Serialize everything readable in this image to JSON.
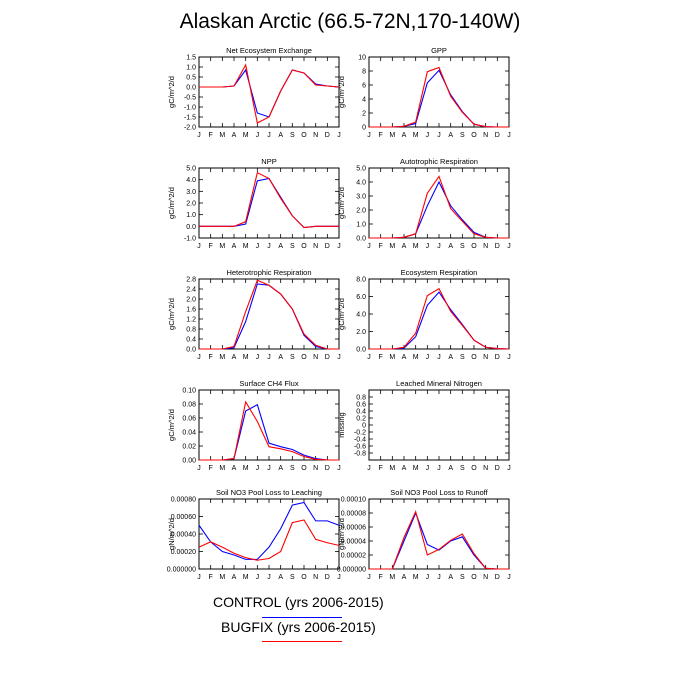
{
  "page": {
    "title": "Alaskan Arctic (66.5-72N,170-140W)"
  },
  "legend": [
    {
      "label": "CONTROL (yrs 2006-2015)",
      "color": "#0000ff"
    },
    {
      "label": "BUGFIX (yrs 2006-2015)",
      "color": "#ff0000"
    }
  ],
  "chart_data": [
    {
      "type": "line",
      "title": "Net Ecosystem Exchange",
      "ylabel": "gC/m^2/d",
      "categories": [
        "J",
        "F",
        "M",
        "A",
        "M",
        "J",
        "J",
        "A",
        "S",
        "O",
        "N",
        "D",
        "J"
      ],
      "ylim": [
        -2.0,
        1.5
      ],
      "yticks": [
        "1.5",
        "1.0",
        "0.5",
        "0.0",
        "-0.5",
        "-1.0",
        "-1.5",
        "-2.0"
      ],
      "series": [
        {
          "color": "#0000ff",
          "values": [
            0.0,
            0.0,
            0.0,
            0.05,
            0.85,
            -1.3,
            -1.5,
            -0.2,
            0.85,
            0.7,
            0.15,
            0.05,
            0.0
          ]
        },
        {
          "color": "#ff0000",
          "values": [
            0.0,
            0.0,
            0.0,
            0.05,
            1.1,
            -1.8,
            -1.5,
            -0.2,
            0.85,
            0.7,
            0.1,
            0.05,
            0.0
          ]
        }
      ]
    },
    {
      "type": "line",
      "title": "GPP",
      "ylabel": "gC/m^2/d",
      "categories": [
        "J",
        "F",
        "M",
        "A",
        "M",
        "J",
        "J",
        "A",
        "S",
        "O",
        "N",
        "D",
        "J"
      ],
      "ylim": [
        0,
        10
      ],
      "yticks": [
        "10",
        "8",
        "6",
        "4",
        "2",
        "0"
      ],
      "series": [
        {
          "color": "#0000ff",
          "values": [
            0,
            0,
            0,
            0.1,
            0.5,
            6.3,
            8.1,
            4.6,
            2.2,
            0.4,
            0.05,
            0,
            0
          ]
        },
        {
          "color": "#ff0000",
          "values": [
            0,
            0,
            0,
            0.1,
            0.7,
            7.9,
            8.5,
            4.4,
            2.1,
            0.4,
            0.05,
            0,
            0
          ]
        }
      ]
    },
    {
      "type": "line",
      "title": "NPP",
      "ylabel": "gC/m^2/d",
      "categories": [
        "J",
        "F",
        "M",
        "A",
        "M",
        "J",
        "J",
        "A",
        "S",
        "O",
        "N",
        "D",
        "J"
      ],
      "ylim": [
        -1.0,
        5.0
      ],
      "yticks": [
        "5.0",
        "4.0",
        "3.0",
        "2.0",
        "1.0",
        "0.0",
        "-1.0"
      ],
      "series": [
        {
          "color": "#0000ff",
          "values": [
            0.0,
            0.0,
            0.0,
            0.0,
            0.2,
            3.9,
            4.1,
            2.5,
            0.9,
            -0.1,
            0.0,
            0.0,
            0.0
          ]
        },
        {
          "color": "#ff0000",
          "values": [
            0.0,
            0.0,
            0.0,
            0.0,
            0.4,
            4.6,
            4.1,
            2.4,
            0.9,
            -0.1,
            0.0,
            0.0,
            0.0
          ]
        }
      ]
    },
    {
      "type": "line",
      "title": "Autotrophic Respiration",
      "ylabel": "gC/m^2/d",
      "categories": [
        "J",
        "F",
        "M",
        "A",
        "M",
        "J",
        "J",
        "A",
        "S",
        "O",
        "N",
        "D",
        "J"
      ],
      "ylim": [
        0.0,
        5.0
      ],
      "yticks": [
        "5.0",
        "4.0",
        "3.0",
        "2.0",
        "1.0",
        "0.0"
      ],
      "series": [
        {
          "color": "#0000ff",
          "values": [
            0,
            0,
            0,
            0.05,
            0.3,
            2.3,
            4.0,
            2.3,
            1.3,
            0.4,
            0.05,
            0,
            0
          ]
        },
        {
          "color": "#ff0000",
          "values": [
            0,
            0,
            0,
            0.05,
            0.3,
            3.2,
            4.4,
            2.1,
            1.2,
            0.3,
            0.05,
            0,
            0
          ]
        }
      ]
    },
    {
      "type": "line",
      "title": "Heterotrophic Respiration",
      "ylabel": "gC/m^2/d",
      "categories": [
        "J",
        "F",
        "M",
        "A",
        "M",
        "J",
        "J",
        "A",
        "S",
        "O",
        "N",
        "D",
        "J"
      ],
      "ylim": [
        0.0,
        2.8
      ],
      "yticks": [
        "2.8",
        "2.4",
        "2.0",
        "1.6",
        "1.2",
        "0.8",
        "0.4",
        "0.0"
      ],
      "series": [
        {
          "color": "#0000ff",
          "values": [
            0.0,
            0.0,
            0.0,
            0.05,
            1.1,
            2.6,
            2.55,
            2.2,
            1.6,
            0.55,
            0.1,
            0.0,
            0.0
          ]
        },
        {
          "color": "#ff0000",
          "values": [
            0.0,
            0.0,
            0.0,
            0.1,
            1.5,
            2.75,
            2.55,
            2.2,
            1.6,
            0.6,
            0.15,
            0.0,
            0.0
          ]
        }
      ]
    },
    {
      "type": "line",
      "title": "Ecosystem Respiration",
      "ylabel": "gC/m^2/d",
      "categories": [
        "J",
        "F",
        "M",
        "A",
        "M",
        "J",
        "J",
        "A",
        "S",
        "O",
        "N",
        "D",
        "J"
      ],
      "ylim": [
        0.0,
        8.0
      ],
      "yticks": [
        "8.0",
        "6.0",
        "4.0",
        "2.0",
        "0.0"
      ],
      "series": [
        {
          "color": "#0000ff",
          "values": [
            0,
            0,
            0,
            0.1,
            1.4,
            5.0,
            6.5,
            4.5,
            2.8,
            1.0,
            0.2,
            0.05,
            0
          ]
        },
        {
          "color": "#ff0000",
          "values": [
            0,
            0,
            0,
            0.2,
            1.8,
            6.1,
            6.9,
            4.3,
            2.7,
            1.0,
            0.2,
            0.05,
            0
          ]
        }
      ]
    },
    {
      "type": "line",
      "title": "Surface CH4 Flux",
      "ylabel": "gC/m^2/d",
      "categories": [
        "J",
        "F",
        "M",
        "A",
        "M",
        "J",
        "J",
        "A",
        "S",
        "O",
        "N",
        "D",
        "J"
      ],
      "ylim": [
        0.0,
        0.1
      ],
      "yticks": [
        "0.10",
        "0.08",
        "0.06",
        "0.04",
        "0.02",
        "0.00"
      ],
      "series": [
        {
          "color": "#0000ff",
          "values": [
            0,
            0,
            0,
            0.002,
            0.07,
            0.079,
            0.024,
            0.019,
            0.015,
            0.007,
            0.002,
            0,
            0
          ]
        },
        {
          "color": "#ff0000",
          "values": [
            0,
            0,
            0,
            0.002,
            0.083,
            0.055,
            0.019,
            0.016,
            0.012,
            0.005,
            0.001,
            0,
            0
          ]
        }
      ]
    },
    {
      "type": "line",
      "title": "Leached Mineral Nitrogen",
      "ylabel": "missing",
      "categories": [
        "J",
        "F",
        "M",
        "A",
        "M",
        "J",
        "J",
        "A",
        "S",
        "O",
        "N",
        "D",
        "J"
      ],
      "ylim": [
        -1.0,
        1.0
      ],
      "yticks": [
        "0.8",
        "0.6",
        "0.4",
        "0.2",
        "0",
        "-0.2",
        "-0.4",
        "-0.6",
        "-0.8"
      ],
      "series": []
    },
    {
      "type": "line",
      "title": "Soil NO3 Pool Loss to Leaching",
      "ylabel": "gN/m^2/d",
      "categories": [
        "J",
        "F",
        "M",
        "A",
        "M",
        "J",
        "J",
        "A",
        "S",
        "O",
        "N",
        "D",
        "J"
      ],
      "ylim": [
        0.0,
        0.0008
      ],
      "yticks": [
        "0.00080",
        "0.00060",
        "0.00040",
        "0.00020",
        "0.000000"
      ],
      "series": [
        {
          "color": "#0000ff",
          "values": [
            0.0005,
            0.00031,
            0.0002,
            0.00016,
            0.00011,
            0.00011,
            0.00025,
            0.00046,
            0.00073,
            0.00076,
            0.00055,
            0.00055,
            0.0005
          ]
        },
        {
          "color": "#ff0000",
          "values": [
            0.00025,
            0.00031,
            0.00025,
            0.00018,
            0.00013,
            0.0001,
            0.00012,
            0.0002,
            0.00053,
            0.00056,
            0.00034,
            0.0003,
            0.00027
          ]
        }
      ]
    },
    {
      "type": "line",
      "title": "Soil NO3 Pool Loss to Runoff",
      "ylabel": "gN/m^2/d",
      "categories": [
        "J",
        "F",
        "M",
        "A",
        "M",
        "J",
        "J",
        "A",
        "S",
        "O",
        "N",
        "D",
        "J"
      ],
      "ylim": [
        0.0,
        0.0001
      ],
      "yticks": [
        "0.00010",
        "0.00008",
        "0.00006",
        "0.00004",
        "0.00002",
        "0.000000"
      ],
      "series": [
        {
          "color": "#0000ff",
          "values": [
            0,
            0,
            0,
            4e-05,
            8e-05,
            3.5e-05,
            2.7e-05,
            4e-05,
            4.6e-05,
            2e-05,
            1e-06,
            0,
            0
          ]
        },
        {
          "color": "#ff0000",
          "values": [
            0,
            0,
            0,
            4.5e-05,
            8.2e-05,
            2e-05,
            2.8e-05,
            4.1e-05,
            5e-05,
            2.2e-05,
            1e-06,
            0,
            0
          ]
        }
      ]
    }
  ]
}
